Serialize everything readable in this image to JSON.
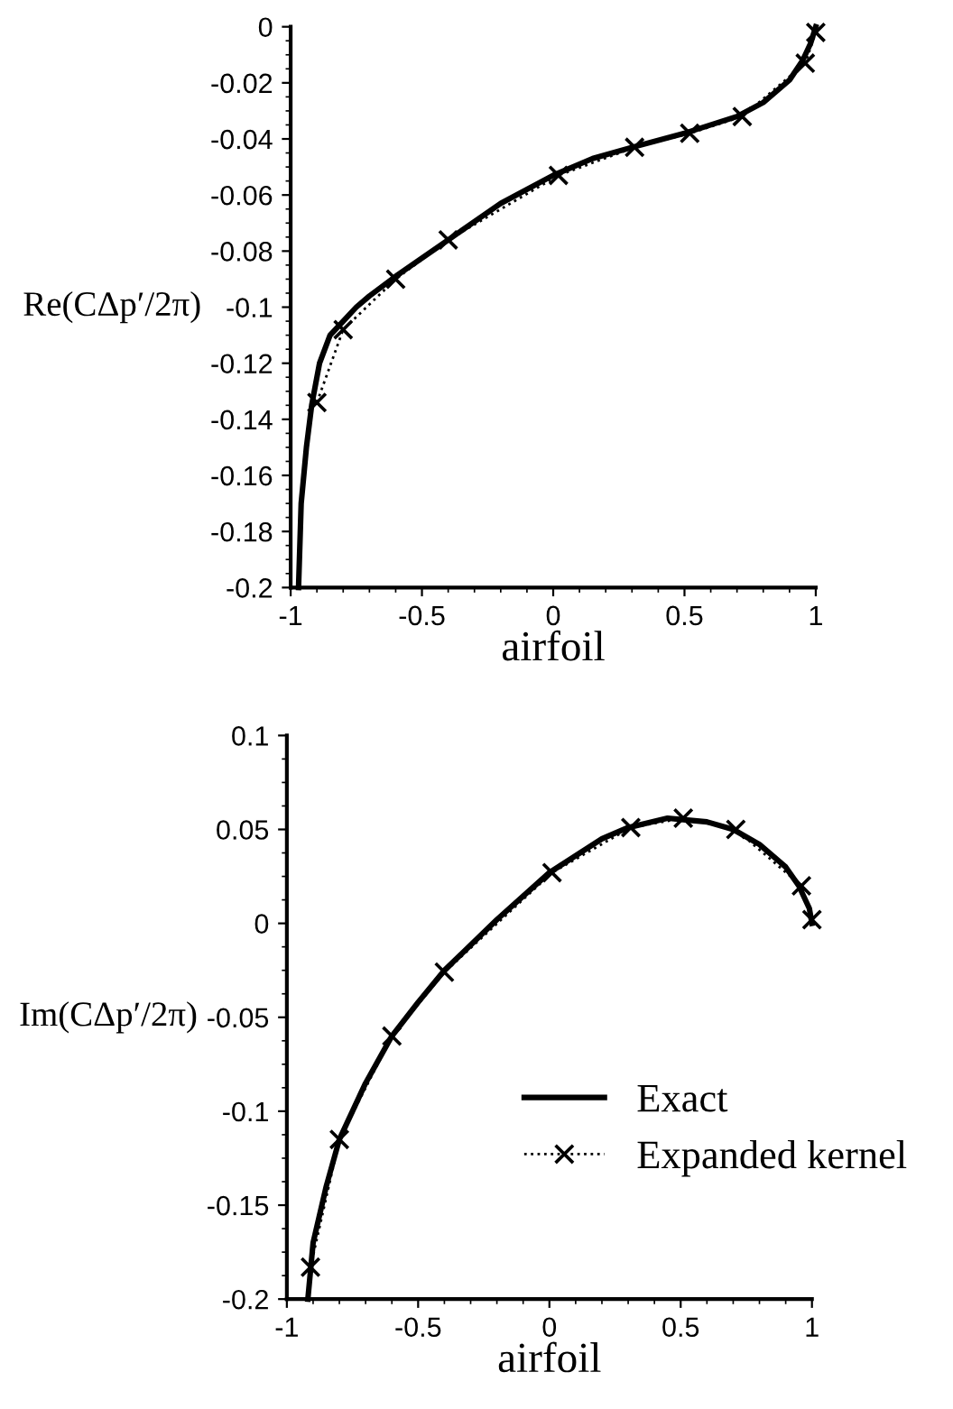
{
  "chart_data": [
    {
      "type": "line",
      "xlabel": "airfoil",
      "ylabel": "Re(CΔp′/2π)",
      "xlim": [
        -1,
        1
      ],
      "ylim": [
        -0.2,
        0
      ],
      "xticks": [
        -1,
        -0.5,
        0,
        0.5,
        1
      ],
      "yticks": [
        -0.2,
        -0.18,
        -0.16,
        -0.14,
        -0.12,
        -0.1,
        -0.08,
        -0.06,
        -0.04,
        -0.02,
        0
      ],
      "grid": false,
      "legend": false,
      "series": [
        {
          "color": "#000000",
          "line_style": "solid",
          "marker": "none",
          "x": [
            -0.97,
            -0.96,
            -0.94,
            -0.92,
            -0.89,
            -0.85,
            -0.8,
            -0.75,
            -0.7,
            -0.6,
            -0.4,
            -0.2,
            0,
            0.15,
            0.3,
            0.5,
            0.7,
            0.8,
            0.9,
            0.95,
            0.98,
            1.0
          ],
          "values": [
            -0.2,
            -0.17,
            -0.15,
            -0.135,
            -0.12,
            -0.11,
            -0.105,
            -0.1,
            -0.096,
            -0.089,
            -0.076,
            -0.063,
            -0.053,
            -0.047,
            -0.043,
            -0.038,
            -0.032,
            -0.027,
            -0.019,
            -0.012,
            -0.006,
            0
          ]
        },
        {
          "color": "#000000",
          "line_style": "dotted",
          "marker": "cross",
          "x": [
            -0.9,
            -0.8,
            -0.6,
            -0.4,
            0.02,
            0.31,
            0.52,
            0.72,
            0.96,
            1.0
          ],
          "values": [
            -0.134,
            -0.108,
            -0.09,
            -0.076,
            -0.053,
            -0.043,
            -0.038,
            -0.032,
            -0.013,
            -0.002
          ]
        }
      ]
    },
    {
      "type": "line",
      "xlabel": "airfoil",
      "ylabel": "Im(CΔp′/2π)",
      "xlim": [
        -1,
        1
      ],
      "ylim": [
        -0.2,
        0.1
      ],
      "xticks": [
        -1,
        -0.5,
        0,
        0.5,
        1
      ],
      "yticks": [
        -0.2,
        -0.15,
        -0.1,
        -0.05,
        0,
        0.05,
        0.1
      ],
      "grid": false,
      "legend": "right",
      "series": [
        {
          "name": "Exact",
          "color": "#000000",
          "line_style": "solid",
          "marker": "none",
          "x": [
            -0.92,
            -0.9,
            -0.85,
            -0.8,
            -0.7,
            -0.6,
            -0.5,
            -0.4,
            -0.2,
            0,
            0.2,
            0.3,
            0.45,
            0.6,
            0.7,
            0.8,
            0.9,
            0.95,
            0.99,
            1.0
          ],
          "values": [
            -0.2,
            -0.17,
            -0.14,
            -0.115,
            -0.085,
            -0.06,
            -0.042,
            -0.025,
            0.002,
            0.027,
            0.045,
            0.051,
            0.056,
            0.054,
            0.05,
            0.042,
            0.03,
            0.02,
            0.008,
            0.0
          ]
        },
        {
          "name": "Expanded kernel",
          "color": "#000000",
          "line_style": "dotted",
          "marker": "cross",
          "x": [
            -0.91,
            -0.8,
            -0.6,
            -0.4,
            0.01,
            0.31,
            0.51,
            0.71,
            0.96,
            1.0
          ],
          "values": [
            -0.183,
            -0.115,
            -0.06,
            -0.026,
            0.027,
            0.051,
            0.056,
            0.05,
            0.02,
            0.002
          ]
        }
      ]
    }
  ]
}
